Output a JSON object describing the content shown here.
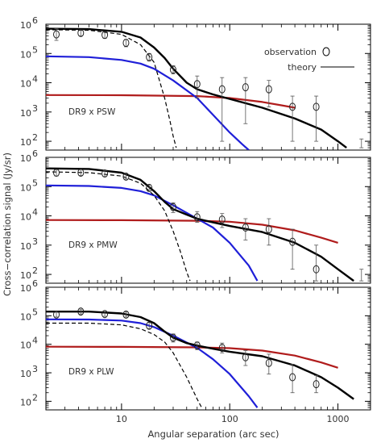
{
  "chart_data": {
    "type": "line",
    "xlabel": "Angular separation (arc sec)",
    "ylabel": "Cross−correlation signal (Jy/sr)",
    "xscale": "log",
    "yscale": "log",
    "xlim": [
      2,
      2000
    ],
    "ylim": [
      50,
      1000000
    ],
    "x_ticks": [
      {
        "v": 10,
        "label": "10"
      },
      {
        "v": 100,
        "label": "100"
      },
      {
        "v": 1000,
        "label": "1000"
      }
    ],
    "y_ticks": [
      {
        "v": 100,
        "label": "10",
        "exp": "2"
      },
      {
        "v": 1000,
        "label": "10",
        "exp": "3"
      },
      {
        "v": 10000,
        "label": "10",
        "exp": "4"
      },
      {
        "v": 100000,
        "label": "10",
        "exp": "5"
      },
      {
        "v": 1000000,
        "label": "10",
        "exp": "6"
      }
    ],
    "legend": {
      "position": "top-right",
      "observation_label": "observation",
      "theory_label": "theory"
    },
    "series_styles": [
      {
        "key": "total",
        "color": "#000000",
        "dash": "none",
        "width": 2.4
      },
      {
        "key": "one_halo",
        "color": "#000000",
        "dash": "5,3",
        "width": 1.2
      },
      {
        "key": "two_halo",
        "color": "#1f1fd8",
        "dash": "none",
        "width": 2.2
      },
      {
        "key": "shot",
        "color": "#b01c1c",
        "dash": "none",
        "width": 2.2
      }
    ],
    "panels": [
      {
        "label": "DR9 x PSW",
        "series": {
          "total": {
            "x": [
              2,
              5,
              10,
              15,
              20,
              25,
              30,
              40,
              50,
              70,
              100,
              200,
              400,
              700,
              1000,
              1200
            ],
            "y": [
              700000,
              680000,
              550000,
              350000,
              160000,
              70000,
              30000,
              10000,
              6000,
              4000,
              2800,
              1400,
              600,
              250,
              100,
              60
            ]
          },
          "one_halo": {
            "x": [
              2,
              5,
              10,
              15,
              20,
              25,
              28,
              30,
              32
            ],
            "y": [
              650000,
              620000,
              450000,
              200000,
              50000,
              3000,
              500,
              150,
              60
            ]
          },
          "two_halo": {
            "x": [
              2,
              5,
              10,
              15,
              20,
              30,
              50,
              70,
              100,
              130,
              150
            ],
            "y": [
              80000,
              75000,
              60000,
              45000,
              30000,
              12000,
              3000,
              800,
              200,
              80,
              50
            ]
          },
          "shot": {
            "x": [
              2,
              10,
              50,
              100,
              200,
              300,
              400
            ],
            "y": [
              3800,
              3750,
              3500,
              3000,
              2200,
              1700,
              1400
            ]
          }
        },
        "observations": [
          {
            "x": 2.5,
            "y": 450000,
            "lo": 280000,
            "hi": 700000
          },
          {
            "x": 4.2,
            "y": 500000,
            "lo": 400000,
            "hi": 650000
          },
          {
            "x": 7,
            "y": 430000,
            "lo": 330000,
            "hi": 560000
          },
          {
            "x": 11,
            "y": 230000,
            "lo": 170000,
            "hi": 300000
          },
          {
            "x": 18,
            "y": 75000,
            "lo": 55000,
            "hi": 100000
          },
          {
            "x": 30,
            "y": 28000,
            "lo": 20000,
            "hi": 38000
          },
          {
            "x": 50,
            "y": 9000,
            "lo": 3000,
            "hi": 17000
          },
          {
            "x": 85,
            "y": 6000,
            "lo": 100,
            "hi": 15000
          },
          {
            "x": 140,
            "y": 7000,
            "lo": 400,
            "hi": 15000
          },
          {
            "x": 230,
            "y": 6000,
            "lo": 1500,
            "hi": 12000
          },
          {
            "x": 380,
            "y": 1500,
            "lo": 100,
            "hi": 3500
          },
          {
            "x": 630,
            "y": 1500,
            "lo": 100,
            "hi": 3500
          },
          {
            "x": 1650,
            "y": null,
            "lo": 60,
            "hi": 120
          }
        ]
      },
      {
        "label": "DR9 x PMW",
        "series": {
          "total": {
            "x": [
              2,
              5,
              10,
              15,
              20,
              25,
              30,
              40,
              50,
              70,
              100,
              200,
              400,
              700,
              1000,
              1400
            ],
            "y": [
              420000,
              400000,
              300000,
              170000,
              70000,
              30000,
              17000,
              11000,
              8000,
              6000,
              4500,
              2800,
              1200,
              400,
              150,
              60
            ]
          },
          "one_halo": {
            "x": [
              2,
              5,
              10,
              15,
              20,
              25,
              30,
              35,
              40,
              43
            ],
            "y": [
              320000,
              300000,
              230000,
              130000,
              50000,
              15000,
              3000,
              600,
              120,
              60
            ]
          },
          "two_halo": {
            "x": [
              2,
              5,
              10,
              15,
              20,
              30,
              50,
              70,
              100,
              150,
              180
            ],
            "y": [
              110000,
              105000,
              90000,
              70000,
              50000,
              23000,
              8000,
              4000,
              1200,
              200,
              60
            ]
          },
          "shot": {
            "x": [
              2,
              10,
              50,
              100,
              200,
              400,
              700,
              1000
            ],
            "y": [
              7200,
              7100,
              6800,
              6300,
              5000,
              3200,
              1800,
              1200
            ]
          }
        },
        "observations": [
          {
            "x": 2.5,
            "y": 300000,
            "lo": 230000,
            "hi": 380000
          },
          {
            "x": 4.2,
            "y": 300000,
            "lo": 240000,
            "hi": 380000
          },
          {
            "x": 7,
            "y": 280000,
            "lo": 220000,
            "hi": 350000
          },
          {
            "x": 11,
            "y": 220000,
            "lo": 180000,
            "hi": 270000
          },
          {
            "x": 18,
            "y": 90000,
            "lo": 70000,
            "hi": 115000
          },
          {
            "x": 30,
            "y": 20000,
            "lo": 13000,
            "hi": 28000
          },
          {
            "x": 50,
            "y": 9000,
            "lo": 6000,
            "hi": 14000
          },
          {
            "x": 85,
            "y": 7500,
            "lo": 4000,
            "hi": 12000
          },
          {
            "x": 140,
            "y": 4000,
            "lo": 1500,
            "hi": 8000
          },
          {
            "x": 230,
            "y": 3500,
            "lo": 1000,
            "hi": 8000
          },
          {
            "x": 380,
            "y": 1300,
            "lo": 150,
            "hi": 3500
          },
          {
            "x": 630,
            "y": 150,
            "lo": 60,
            "hi": 1000
          },
          {
            "x": 1650,
            "y": null,
            "lo": 60,
            "hi": 150
          }
        ]
      },
      {
        "label": "DR9 x PLW",
        "series": {
          "total": {
            "x": [
              2,
              5,
              10,
              15,
              20,
              25,
              30,
              40,
              50,
              70,
              100,
              200,
              400,
              700,
              1000,
              1400
            ],
            "y": [
              140000,
              140000,
              120000,
              90000,
              55000,
              28000,
              17000,
              11000,
              9000,
              7000,
              5500,
              3800,
              1800,
              700,
              300,
              120
            ]
          },
          "one_halo": {
            "x": [
              2,
              5,
              10,
              15,
              20,
              25,
              30,
              40,
              50,
              55
            ],
            "y": [
              55000,
              55000,
              48000,
              35000,
              22000,
              12000,
              5000,
              700,
              120,
              60
            ]
          },
          "two_halo": {
            "x": [
              2,
              5,
              10,
              15,
              20,
              30,
              50,
              70,
              100,
              150,
              180
            ],
            "y": [
              75000,
              74000,
              68000,
              55000,
              40000,
              20000,
              7500,
              3000,
              900,
              150,
              60
            ]
          },
          "shot": {
            "x": [
              2,
              10,
              50,
              100,
              200,
              400,
              700,
              1000
            ],
            "y": [
              8200,
              8100,
              7800,
              7300,
              6000,
              4000,
              2300,
              1500
            ]
          }
        },
        "observations": [
          {
            "x": 2.5,
            "y": 110000,
            "lo": 90000,
            "hi": 140000
          },
          {
            "x": 4.2,
            "y": 140000,
            "lo": 115000,
            "hi": 170000
          },
          {
            "x": 7,
            "y": 115000,
            "lo": 95000,
            "hi": 140000
          },
          {
            "x": 11,
            "y": 110000,
            "lo": 90000,
            "hi": 135000
          },
          {
            "x": 18,
            "y": 45000,
            "lo": 35000,
            "hi": 58000
          },
          {
            "x": 30,
            "y": 17000,
            "lo": 12000,
            "hi": 23000
          },
          {
            "x": 50,
            "y": 9000,
            "lo": 6500,
            "hi": 12000
          },
          {
            "x": 85,
            "y": 7500,
            "lo": 5000,
            "hi": 11000
          },
          {
            "x": 140,
            "y": 3500,
            "lo": 1800,
            "hi": 6000
          },
          {
            "x": 230,
            "y": 2200,
            "lo": 900,
            "hi": 4500
          },
          {
            "x": 380,
            "y": 700,
            "lo": 200,
            "hi": 2000
          },
          {
            "x": 630,
            "y": 400,
            "lo": 200,
            "hi": 800
          }
        ]
      }
    ]
  }
}
